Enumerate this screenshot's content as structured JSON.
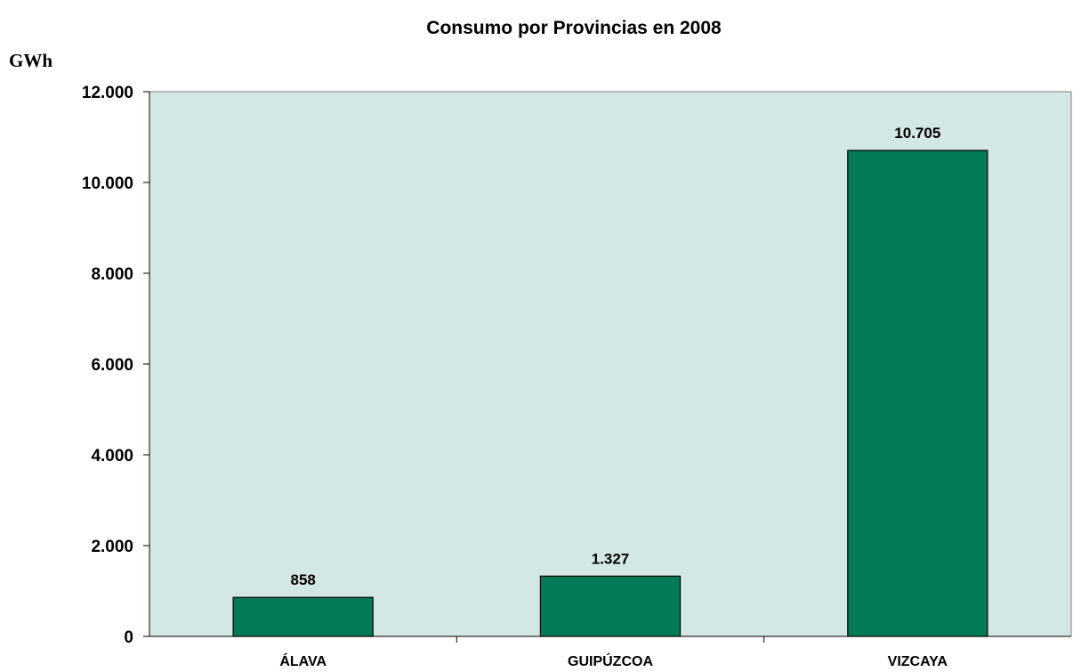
{
  "chart_data": {
    "type": "bar",
    "title": "Consumo por Provincias en 2008",
    "ylabel": "GWh",
    "xlabel": "",
    "categories": [
      "ÁLAVA",
      "GUIPÚZCOA",
      "VIZCAYA"
    ],
    "values": [
      858,
      1327,
      10705
    ],
    "value_labels": [
      "858",
      "1.327",
      "10.705"
    ],
    "ylim": [
      0,
      12000
    ],
    "yticks": [
      0,
      2000,
      4000,
      6000,
      8000,
      10000,
      12000
    ],
    "ytick_labels": [
      "0",
      "2.000",
      "4.000",
      "6.000",
      "8.000",
      "10.000",
      "12.000"
    ],
    "grid": false,
    "legend": "none",
    "colors": {
      "bar": "#007a57",
      "plot_background": "#d3e7e5",
      "axis": "#000000"
    }
  }
}
